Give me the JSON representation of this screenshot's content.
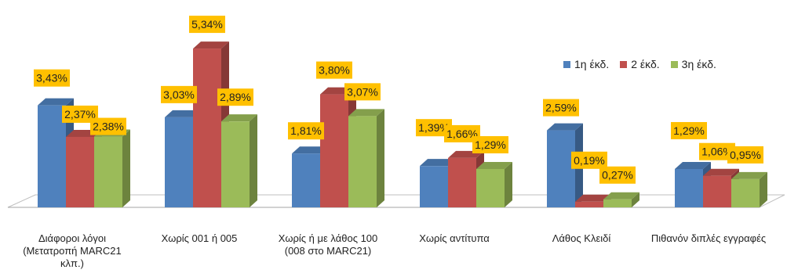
{
  "chart_data": {
    "type": "bar",
    "categories": [
      "Διάφοροι λόγοι (Μετατροπή MARC21 κλπ.)",
      "Χωρίς 001 ή 005",
      "Χωρίς ή με λάθος 100 (008 στο MARC21)",
      "Χωρίς αντίτυπα",
      "Λάθος Κλειδί",
      "Πιθανόν διπλές εγγραφές"
    ],
    "series": [
      {
        "name": "1η έκδ.",
        "color": "#4F81BD",
        "values": [
          3.43,
          3.03,
          1.81,
          1.39,
          2.59,
          1.29
        ],
        "labels": [
          "3,43%",
          "3,03%",
          "1,81%",
          "1,39%",
          "2,59%",
          "1,29%"
        ]
      },
      {
        "name": "2 έκδ.",
        "color": "#C0504D",
        "values": [
          2.37,
          5.34,
          3.8,
          1.66,
          0.19,
          1.06
        ],
        "labels": [
          "2,37%",
          "5,34%",
          "3,80%",
          "1,66%",
          "0,19%",
          "1,06%"
        ]
      },
      {
        "name": "3η έκδ.",
        "color": "#9BBB59",
        "values": [
          2.38,
          2.89,
          3.07,
          1.29,
          0.27,
          0.95
        ],
        "labels": [
          "2,38%",
          "2,89%",
          "3,07%",
          "1,29%",
          "0,27%",
          "0,95%"
        ]
      }
    ],
    "title": "",
    "xlabel": "",
    "ylabel": "",
    "ylim": [
      0,
      5.34
    ],
    "grid": false,
    "legend_position": "top-right",
    "data_label_bg": "#FFC000"
  }
}
